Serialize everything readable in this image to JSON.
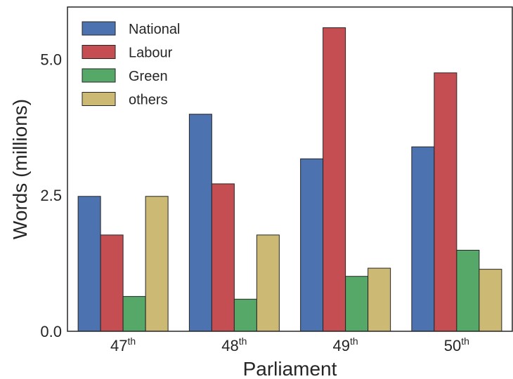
{
  "chart_data": {
    "type": "bar",
    "title": "",
    "xlabel": "Parliament",
    "ylabel": "Words (millions)",
    "ylim": [
      0,
      5.96
    ],
    "y_ticks": [
      "0.0",
      "2.5",
      "5.0"
    ],
    "y_tick_values": [
      0,
      2.5,
      5.0
    ],
    "grid": false,
    "legend_position": "top-left",
    "categories": [
      {
        "base": "47",
        "sup": "th"
      },
      {
        "base": "48",
        "sup": "th"
      },
      {
        "base": "49",
        "sup": "th"
      },
      {
        "base": "50",
        "sup": "th"
      }
    ],
    "series": [
      {
        "name": "National",
        "color": "#4c72b0",
        "values": [
          2.48,
          3.99,
          3.17,
          3.39
        ]
      },
      {
        "name": "Labour",
        "color": "#c44e52",
        "values": [
          1.77,
          2.71,
          5.58,
          4.75
        ]
      },
      {
        "name": "Green",
        "color": "#55a868",
        "values": [
          0.64,
          0.59,
          1.01,
          1.49
        ]
      },
      {
        "name": "others",
        "color": "#ccb974",
        "values": [
          2.48,
          1.77,
          1.16,
          1.14
        ]
      }
    ]
  }
}
